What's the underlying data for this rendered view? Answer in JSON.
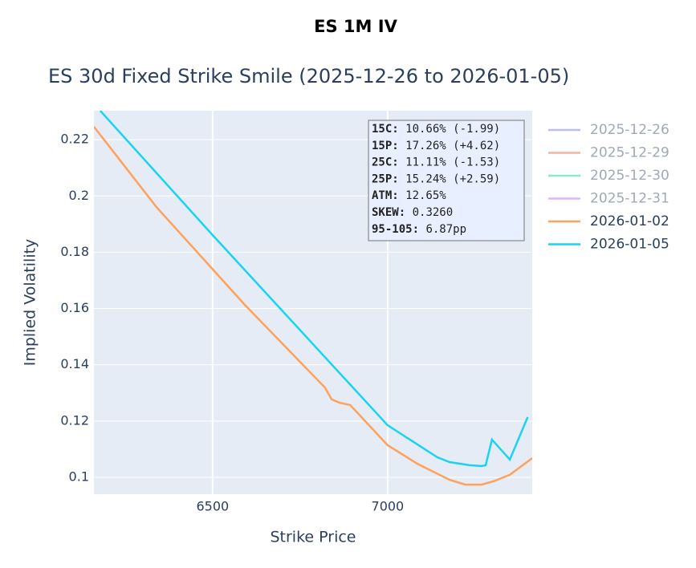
{
  "header": {
    "title": "ES 1M IV"
  },
  "chart_data": {
    "type": "line",
    "title": "ES 30d Fixed Strike Smile (2025-12-26 to 2026-01-05)",
    "x_label": "Strike Price",
    "y_label": "Implied Volatility",
    "xlim": [
      6161,
      7413
    ],
    "ylim": [
      0.094,
      0.2303
    ],
    "xticks": [
      6500,
      7000
    ],
    "yticks": [
      0.1,
      0.12,
      0.14,
      0.16,
      0.18,
      0.2,
      0.22
    ],
    "grid": true,
    "legend": "right",
    "series": [
      {
        "name": "2025-12-26",
        "color": "#636efa",
        "visible": false
      },
      {
        "name": "2025-12-29",
        "color": "#ef553b",
        "visible": false
      },
      {
        "name": "2025-12-30",
        "color": "#00cc96",
        "visible": false
      },
      {
        "name": "2025-12-31",
        "color": "#ab63fa",
        "visible": false
      },
      {
        "name": "2026-01-02",
        "color": "#ffa15a",
        "visible": true,
        "x": [
          6161,
          6340,
          6592,
          6821,
          6840,
          6863,
          6893,
          7000,
          7085,
          7177,
          7222,
          7268,
          7303,
          7349,
          7413
        ],
        "values": [
          0.2246,
          0.196,
          0.1613,
          0.1319,
          0.1277,
          0.1265,
          0.1257,
          0.1114,
          0.1048,
          0.0991,
          0.0974,
          0.0974,
          0.0986,
          0.1009,
          0.1068
        ]
      },
      {
        "name": "2026-01-05",
        "color": "#19d3f3",
        "visible": true,
        "x": [
          6179,
          6500,
          7000,
          7142,
          7177,
          7234,
          7268,
          7280,
          7298,
          7349,
          7400
        ],
        "values": [
          0.2303,
          0.1861,
          0.1185,
          0.1071,
          0.1054,
          0.1043,
          0.104,
          0.1043,
          0.1134,
          0.1063,
          0.1214
        ]
      }
    ],
    "annotation": [
      {
        "label": "15C:",
        "text": " 10.66% (-1.99)"
      },
      {
        "label": "15P:",
        "text": " 17.26% (+4.62)"
      },
      {
        "label": "25C:",
        "text": " 11.11% (-1.53)"
      },
      {
        "label": "25P:",
        "text": " 15.24% (+2.59)"
      },
      {
        "label": "ATM:",
        "text": " 12.65%"
      },
      {
        "label": "SKEW:",
        "text": " 0.3260"
      },
      {
        "label": "95-105:",
        "text": " 6.87pp"
      }
    ]
  }
}
